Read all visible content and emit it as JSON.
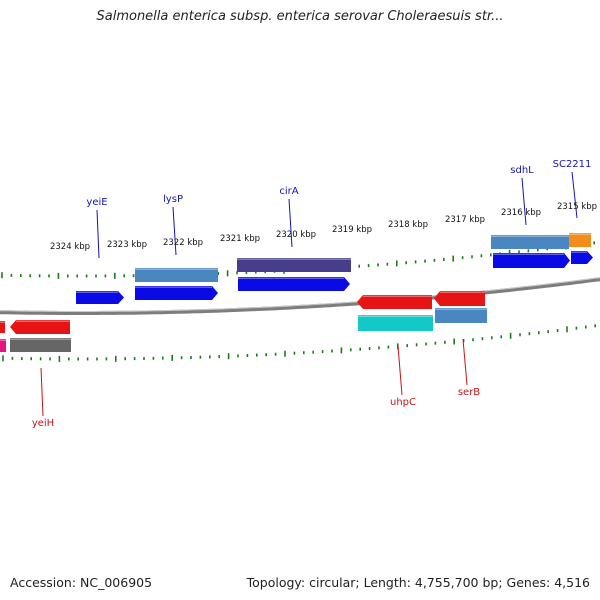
{
  "title": "Salmonella enterica subsp. enterica serovar Choleraesuis str...",
  "footer": {
    "accession": "Accession: NC_006905",
    "stats": "Topology: circular; Length: 4,755,700 bp; Genes: 4,516"
  },
  "colors": {
    "backbone": "#7d7d7d",
    "tick": "#1f7a1f",
    "forward_label": "#1414b4",
    "reverse_label": "#c81414"
  },
  "scale_labels": [
    "2324 kbp",
    "2323 kbp",
    "2322 kbp",
    "2321 kbp",
    "2320 kbp",
    "2319 kbp",
    "2318 kbp",
    "2317 kbp",
    "2316 kbp",
    "2315 kbp"
  ],
  "genes": [
    {
      "name": "yeiE",
      "strand": "forward",
      "colors": [
        "#0a0ae6"
      ]
    },
    {
      "name": "lysP",
      "strand": "forward",
      "colors": [
        "#4a86c0",
        "#0a0ae6"
      ]
    },
    {
      "name": "cirA",
      "strand": "forward",
      "colors": [
        "#463e8a",
        "#0a0ae6"
      ]
    },
    {
      "name": "sdhL",
      "strand": "forward",
      "colors": [
        "#4a86c0",
        "#0a0ae6"
      ]
    },
    {
      "name": "SC2211",
      "strand": "forward",
      "colors": [
        "#f28c1c",
        "#0a0ae6"
      ]
    },
    {
      "name": "yeiH",
      "strand": "reverse",
      "colors": [
        "#e61414",
        "#666666"
      ]
    },
    {
      "name": "",
      "strand": "reverse",
      "colors": [
        "#e6147d"
      ]
    },
    {
      "name": "uhpC",
      "strand": "reverse",
      "colors": [
        "#e61414",
        "#14c8c8"
      ]
    },
    {
      "name": "serB",
      "strand": "reverse",
      "colors": [
        "#e61414",
        "#4a86c0"
      ]
    }
  ]
}
